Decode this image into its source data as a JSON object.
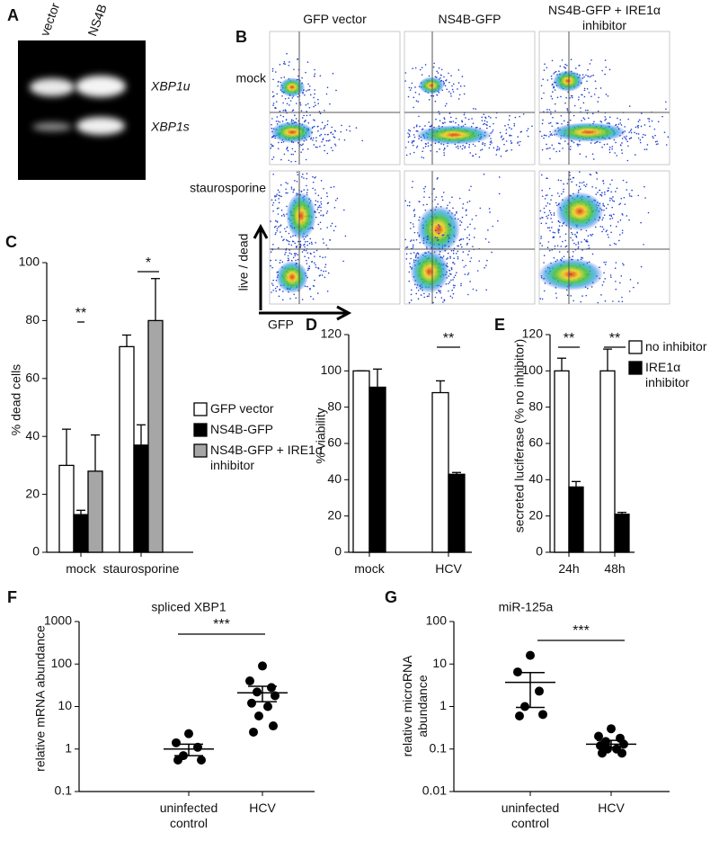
{
  "panel_labels": [
    "A",
    "B",
    "C",
    "D",
    "E",
    "F",
    "G"
  ],
  "gel": {
    "lanes": [
      "vector",
      "NS4B"
    ],
    "bands": [
      "XBP1u",
      "XBP1s"
    ]
  },
  "flow": {
    "columns": [
      "GFP  vector",
      "NS4B-GFP",
      "NS4B-GFP + IRE1α inhibitor"
    ],
    "rows": [
      "mock",
      "staurosporine"
    ],
    "x_axis": "GFP",
    "y_axis": "live / dead"
  },
  "chart_data": [
    {
      "type": "bar",
      "y_label": "% dead cells",
      "categories": [
        "mock",
        "staurosporine"
      ],
      "series": [
        {
          "name": "GFP vector",
          "color": "#ffffff",
          "values": [
            30,
            71
          ],
          "errors": [
            12.5,
            4
          ]
        },
        {
          "name": "NS4B-GFP",
          "color": "#000000",
          "values": [
            13,
            37
          ],
          "errors": [
            1.5,
            7
          ]
        },
        {
          "name": "NS4B-GFP + IRE1α inhibitor",
          "color": "#a6a6a6",
          "values": [
            28,
            80
          ],
          "errors": [
            12.5,
            14.5
          ]
        }
      ],
      "ylim": [
        0,
        100
      ],
      "yticks": [
        0,
        20,
        40,
        60,
        80,
        100
      ],
      "annotations": [
        "**",
        "*"
      ],
      "legend": "right"
    },
    {
      "type": "bar",
      "y_label": "% viability",
      "categories": [
        "mock",
        "HCV"
      ],
      "series": [
        {
          "color": "#ffffff",
          "values": [
            100,
            88
          ],
          "errors": [
            0,
            6.5
          ]
        },
        {
          "color": "#000000",
          "values": [
            91,
            43
          ],
          "errors": [
            10,
            1
          ]
        }
      ],
      "ylim": [
        0,
        120
      ],
      "yticks": [
        0,
        20,
        40,
        60,
        80,
        100,
        120
      ],
      "annotations": [
        "**"
      ]
    },
    {
      "type": "bar",
      "y_label": "secreted luciferase (% no inhibitor)",
      "categories": [
        "24h",
        "48h"
      ],
      "series": [
        {
          "name": "no inhibitor",
          "color": "#ffffff",
          "values": [
            100,
            100
          ],
          "errors": [
            7,
            12
          ]
        },
        {
          "name": "IRE1α inhibitor",
          "color": "#000000",
          "values": [
            36,
            21
          ],
          "errors": [
            3,
            1
          ]
        }
      ],
      "ylim": [
        0,
        120
      ],
      "yticks": [
        0,
        20,
        40,
        60,
        80,
        100,
        120
      ],
      "annotations": [
        "**",
        "**"
      ],
      "legend": "right"
    },
    {
      "type": "dot",
      "title": "spliced XBP1",
      "y_label": "relative mRNA abundance",
      "categories": [
        "uninfected control",
        "HCV"
      ],
      "values": [
        [
          2.3,
          1.4,
          1.1,
          0.7,
          0.55,
          0.55
        ],
        [
          90,
          40,
          28,
          22,
          18,
          12,
          10,
          6,
          3.5,
          2.5
        ]
      ],
      "means": [
        1,
        21
      ],
      "sem": [
        [
          0.7,
          1.3
        ],
        [
          13,
          30
        ]
      ],
      "log": true,
      "ylim": [
        0.1,
        1000
      ],
      "yticks": [
        0.1,
        1,
        10,
        100,
        1000
      ],
      "annotations": [
        "***"
      ]
    },
    {
      "type": "dot",
      "title": "miR-125a",
      "y_label": "relative microRNA abundance",
      "categories": [
        "uninfected control",
        "HCV"
      ],
      "values": [
        [
          16,
          6.5,
          2.3,
          1.0,
          0.65,
          0.6
        ],
        [
          0.3,
          0.2,
          0.18,
          0.15,
          0.13,
          0.12,
          0.1,
          0.1,
          0.08,
          0.08
        ]
      ],
      "means": [
        3.7,
        0.13
      ],
      "sem": [
        [
          0.95,
          6.3
        ],
        [
          0.11,
          0.16
        ]
      ],
      "log": true,
      "ylim": [
        0.01,
        100
      ],
      "yticks": [
        0.01,
        0.1,
        1,
        10,
        100
      ],
      "annotations": [
        "***"
      ]
    }
  ]
}
